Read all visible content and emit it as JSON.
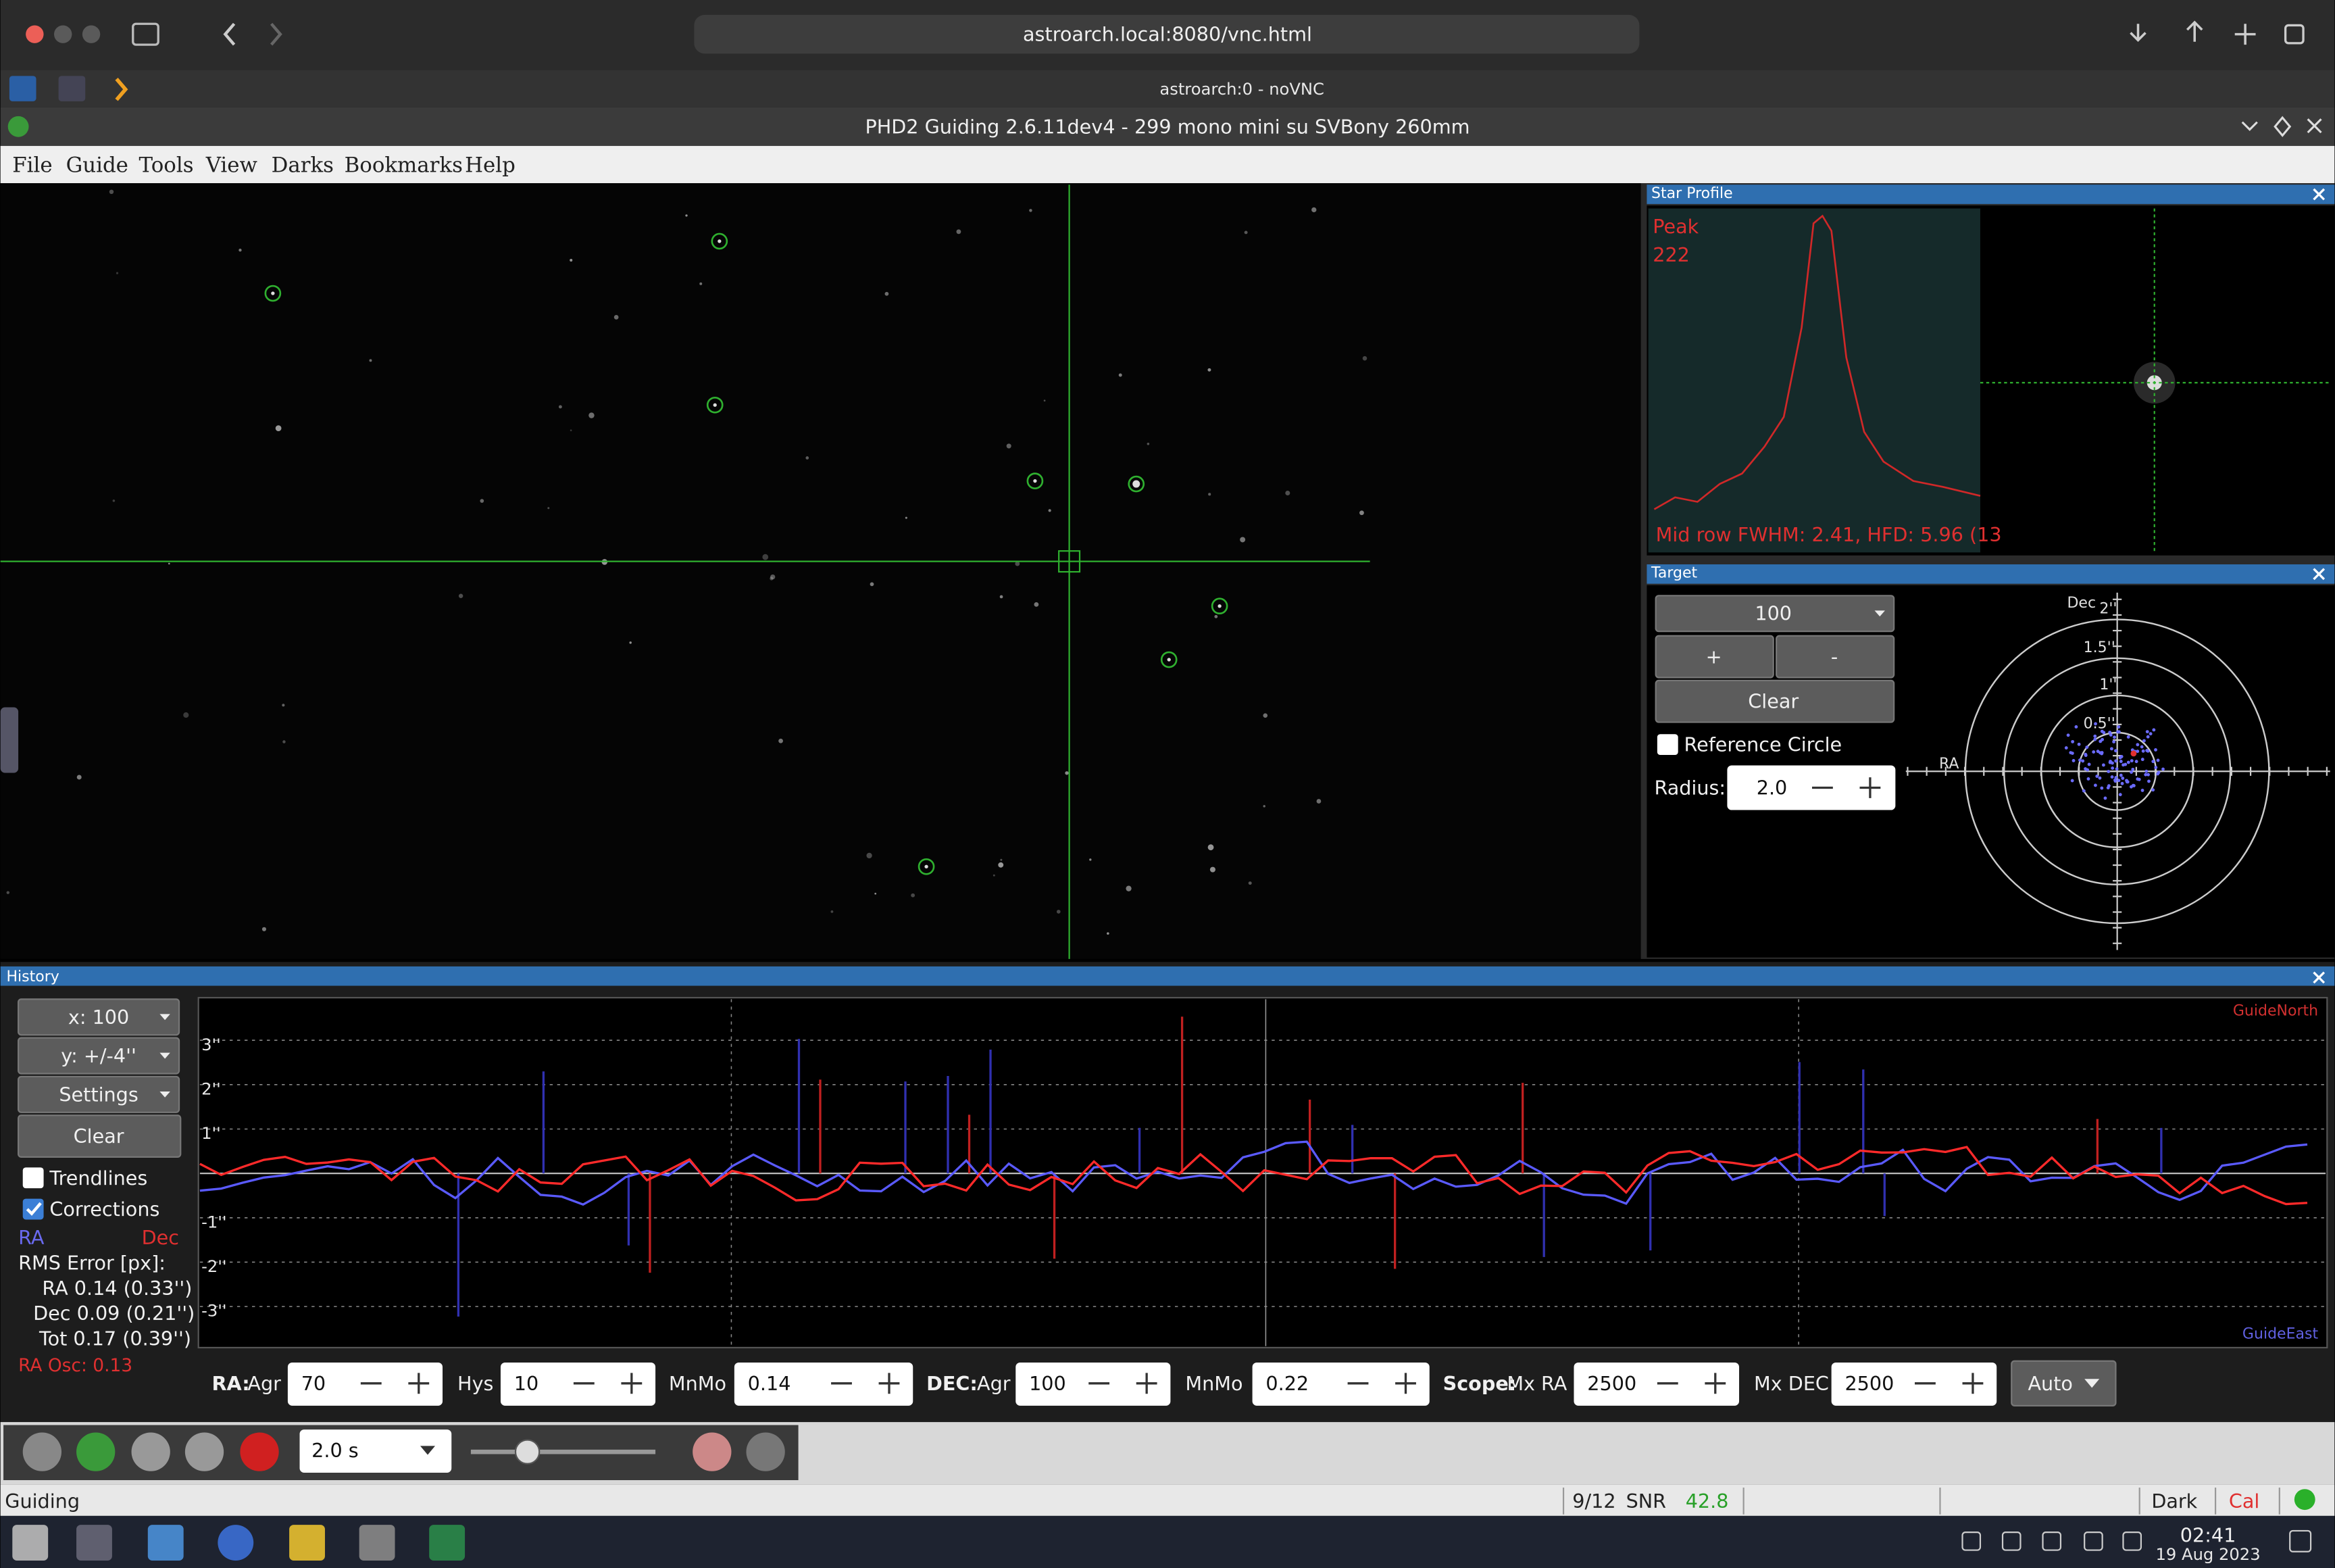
{
  "browser": {
    "url": "astroarch.local:8080/vnc.html",
    "tab_title": "astroarch:0 - noVNC"
  },
  "window": {
    "title": "PHD2 Guiding 2.6.11dev4 - 299 mono mini su SVBony 260mm"
  },
  "menu": [
    "File",
    "Guide",
    "Tools",
    "View",
    "Darks",
    "Bookmarks",
    "Help"
  ],
  "star_profile": {
    "title": "Star Profile",
    "peak_label": "Peak",
    "peak_value": "222",
    "fwhm_text": "Mid row FWHM: 2.41, HFD: 5.96 (13"
  },
  "target": {
    "title": "Target",
    "zoom": "100",
    "plus": "+",
    "minus": "-",
    "clear": "Clear",
    "reference_circle": "Reference Circle",
    "radius_label": "Radius:",
    "radius": "2.0",
    "dec_axis": "Dec",
    "ra_axis": "RA",
    "rings": [
      "0.5''",
      "1''",
      "1.5''",
      "2''"
    ]
  },
  "history": {
    "title": "History",
    "x_range": "x: 100",
    "y_range": "y: +/-4''",
    "settings": "Settings",
    "clear": "Clear",
    "trendlines": "Trendlines",
    "corrections": "Corrections",
    "ra_legend": "RA",
    "dec_legend": "Dec",
    "rms_title": "RMS Error [px]:",
    "rms_ra": "RA 0.14 (0.33'')",
    "rms_dec": "Dec 0.09 (0.21'')",
    "rms_tot": "Tot 0.17 (0.39'')",
    "ra_osc": "RA Osc: 0.13",
    "y_labels": [
      "3''",
      "2''",
      "1''",
      "-1''",
      "-2''",
      "-3''"
    ],
    "guide_north": "GuideNorth",
    "guide_east": "GuideEast"
  },
  "controls": {
    "ra_label": "RA:",
    "ra_agr_label": "Agr",
    "ra_agr": "70",
    "hys_label": "Hys",
    "hys": "10",
    "ra_mnmo_label": "MnMo",
    "ra_mnmo": "0.14",
    "dec_label": "DEC:",
    "dec_agr_label": "Agr",
    "dec_agr": "100",
    "dec_mnmo_label": "MnMo",
    "dec_mnmo": "0.22",
    "scope_label": "Scope:",
    "mx_ra_label": "Mx RA",
    "mx_ra": "2500",
    "mx_dec_label": "Mx DEC",
    "mx_dec": "2500",
    "mode": "Auto"
  },
  "toolbar": {
    "exposure": "2.0 s"
  },
  "status": {
    "state": "Guiding",
    "frames": "9/12",
    "snr_label": "SNR",
    "snr_value": "42.8",
    "dark": "Dark",
    "cal": "Cal"
  },
  "taskbar": {
    "time": "02:41",
    "date": "19 Aug 2023"
  }
}
